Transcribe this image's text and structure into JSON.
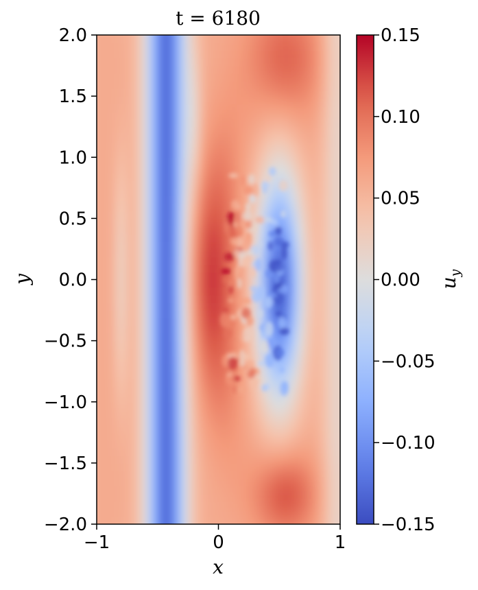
{
  "chart_data": {
    "type": "heatmap",
    "title": "t = 6180",
    "xlabel": "x",
    "ylabel": "y",
    "colorbar_label": "u_y",
    "colorbar_label_main": "u",
    "colorbar_label_sub": "y",
    "colormap": "coolwarm",
    "xlim": [
      -1,
      1
    ],
    "ylim": [
      -2.0,
      2.0
    ],
    "clim": [
      -0.15,
      0.15
    ],
    "x_ticks": [
      -1,
      0,
      1
    ],
    "x_tick_labels": [
      "−1",
      "0",
      "1"
    ],
    "y_ticks": [
      -2.0,
      -1.5,
      -1.0,
      -0.5,
      0.0,
      0.5,
      1.0,
      1.5,
      2.0
    ],
    "y_tick_labels": [
      "−2.0",
      "−1.5",
      "−1.0",
      "−0.5",
      "0.0",
      "0.5",
      "1.0",
      "1.5",
      "2.0"
    ],
    "c_ticks": [
      -0.15,
      -0.1,
      -0.05,
      0.0,
      0.05,
      0.1,
      0.15
    ],
    "c_tick_labels": [
      "−0.15",
      "−0.10",
      "−0.05",
      "0.00",
      "0.05",
      "0.10",
      "0.15"
    ],
    "colors": {
      "cold": "#3b4cc0",
      "neutral": "#dddddd",
      "hot": "#b40426"
    }
  }
}
